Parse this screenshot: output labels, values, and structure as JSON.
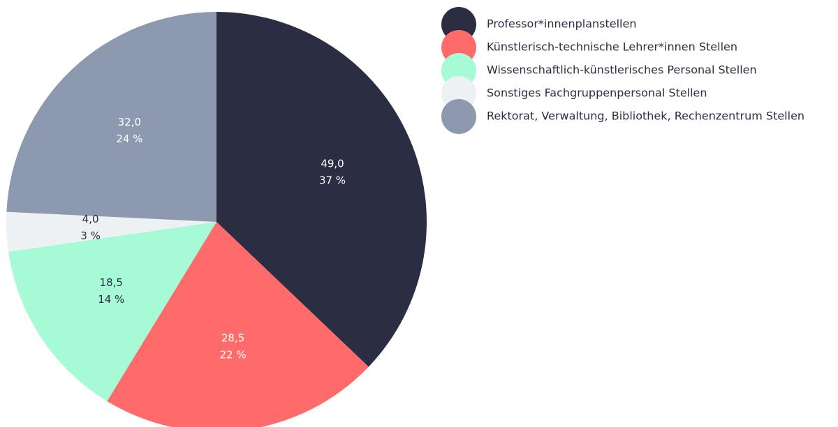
{
  "chart_data": {
    "type": "pie",
    "categories": [
      "Professor*innenplanstellen",
      "Künstlerisch-technische Lehrer*innen Stellen",
      "Wissenschaftlich-künstlerisches Personal Stellen",
      "Sonstiges Fachgruppenpersonal Stellen",
      "Rektorat, Verwaltung, Bibliothek, Rechenzentrum Stellen"
    ],
    "values": [
      49.0,
      28.5,
      18.5,
      4.0,
      32.0
    ],
    "value_labels": [
      "49,0",
      "28,5",
      "18,5",
      "4,0",
      "32,0"
    ],
    "percentages": [
      37,
      22,
      14,
      3,
      24
    ],
    "percentage_labels": [
      "37 %",
      "22 %",
      "14 %",
      "3 %",
      "24 %"
    ],
    "colors": [
      "#2b2d42",
      "#ff6b6b",
      "#a6fbd6",
      "#edf1f4",
      "#8d99ae"
    ],
    "legend": "right"
  }
}
